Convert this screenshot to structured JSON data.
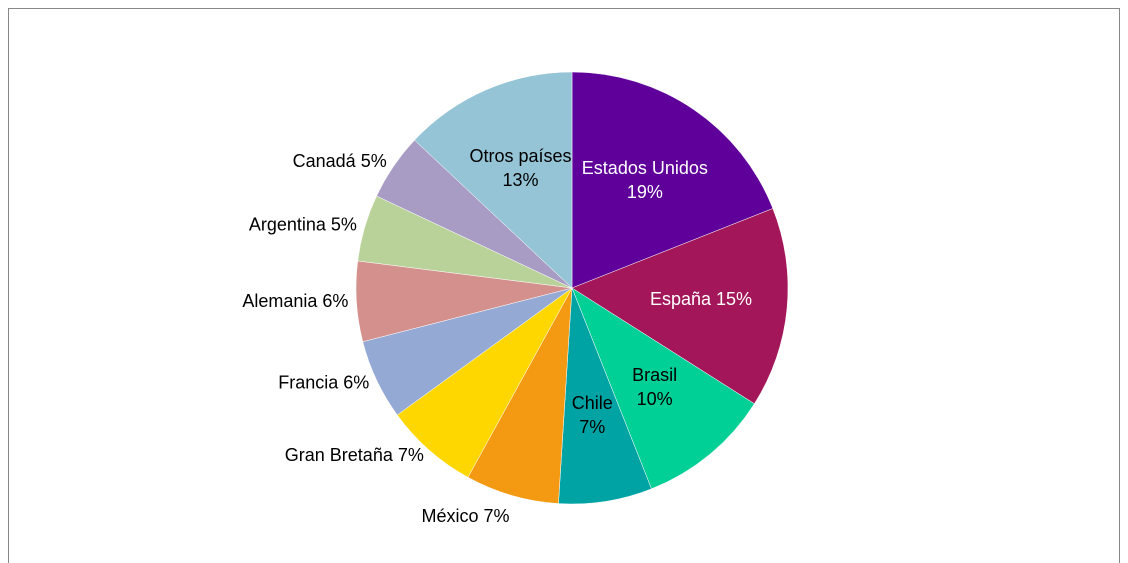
{
  "chart_data": {
    "type": "pie",
    "categories": [
      "Estados Unidos",
      "España",
      "Brasil",
      "Chile",
      "México",
      "Gran Bretaña",
      "Francia",
      "Alemania",
      "Argentina",
      "Canadá",
      "Otros países"
    ],
    "values": [
      19,
      15,
      10,
      7,
      7,
      7,
      6,
      6,
      5,
      5,
      13
    ],
    "value_labels": [
      "19%",
      "15%",
      "10%",
      "7%",
      "7%",
      "7%",
      "6%",
      "6%",
      "5%",
      "5%",
      "13%"
    ],
    "colors": [
      "#5e0099",
      "#a3175a",
      "#00cf96",
      "#00a3a3",
      "#f39a12",
      "#ffd700",
      "#94a9d3",
      "#d3908d",
      "#b9d299",
      "#a89bc4",
      "#94c4d6"
    ],
    "label_positions": [
      "inside",
      "inside",
      "inside",
      "inside",
      "outside",
      "outside",
      "outside",
      "outside",
      "outside",
      "outside",
      "inside"
    ]
  }
}
